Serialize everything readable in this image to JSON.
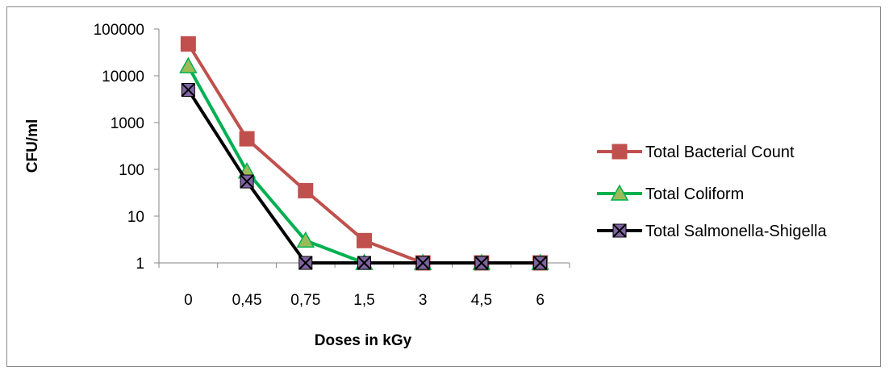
{
  "chart_data": {
    "type": "line",
    "title": "",
    "xlabel": "Doses in kGy",
    "ylabel": "CFU/ml",
    "categories": [
      "0",
      "0,45",
      "0,75",
      "1,5",
      "3",
      "4,5",
      "6"
    ],
    "y_scale": "log",
    "ylim": [
      1,
      100000
    ],
    "yticks": [
      "1",
      "10",
      "100",
      "1000",
      "10000",
      "100000"
    ],
    "grid": false,
    "legend_position": "right",
    "series": [
      {
        "name": "Total Bacterial Count",
        "values": [
          48000,
          450,
          35,
          3,
          1,
          1,
          1
        ],
        "color": "#C0504D",
        "marker": "square"
      },
      {
        "name": "Total Coliform",
        "values": [
          16000,
          90,
          3,
          1,
          1,
          1,
          1
        ],
        "color": "#00B050",
        "marker_fill": "#9BBB59",
        "marker": "triangle"
      },
      {
        "name": "Total Salmonella-Shigella",
        "values": [
          5000,
          55,
          1,
          1,
          1,
          1,
          1
        ],
        "color": "#000000",
        "marker_fill": "#8064A2",
        "marker": "x-square"
      }
    ]
  }
}
